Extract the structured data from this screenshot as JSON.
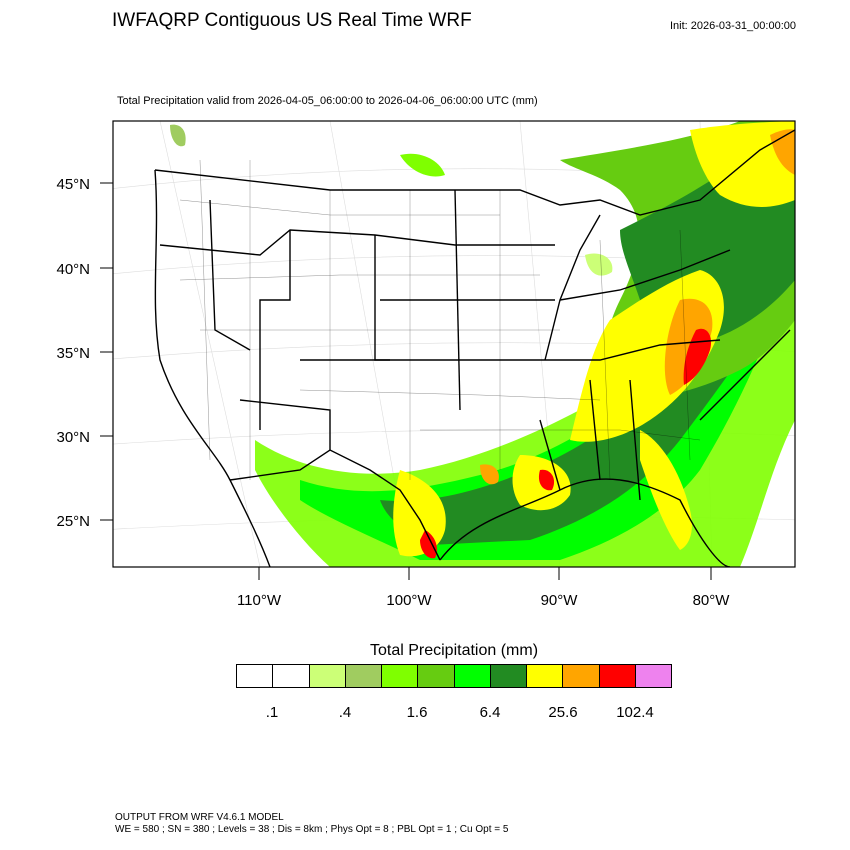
{
  "header": {
    "title": "IWFAQRP Contiguous US Real Time WRF",
    "init": "Init: 2026-03-31_00:00:00"
  },
  "map": {
    "subtitle": "Total Precipitation valid from 2026-04-05_06:00:00 to 2026-04-06_06:00:00 UTC   (mm)",
    "lat_labels": [
      "45°N",
      "40°N",
      "35°N",
      "30°N",
      "25°N"
    ],
    "lon_labels": [
      "110°W",
      "100°W",
      "90°W",
      "80°W"
    ]
  },
  "legend": {
    "title": "Total Precipitation  (mm)",
    "colors": [
      "#ffffff",
      "#ffffff",
      "#ccff77",
      "#a0cc60",
      "#7fff00",
      "#66cc11",
      "#00ff00",
      "#228b22",
      "#ffff00",
      "#ffa500",
      "#ff0000",
      "#ee82ee"
    ],
    "tick_labels": [
      ".1",
      ".4",
      "1.6",
      "6.4",
      "25.6",
      "102.4"
    ]
  },
  "footer": {
    "line1": "OUTPUT FROM WRF V4.6.1 MODEL",
    "line2": "WE = 580 ; SN = 380 ; Levels = 38 ; Dis = 8km ; Phys Opt = 8 ; PBL Opt = 1 ; Cu Opt = 5"
  }
}
